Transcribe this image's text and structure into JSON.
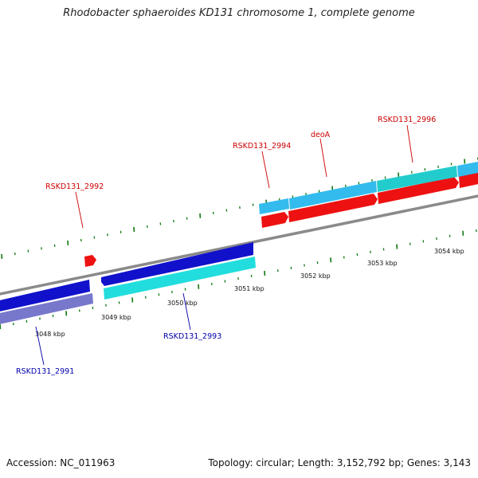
{
  "title": "Rhodobacter sphaeroides KD131 chromosome 1, complete genome",
  "footer": {
    "accession": "Accession: NC_011963",
    "stats": "Topology: circular; Length: 3,152,792 bp; Genes: 3,143"
  },
  "ticks": [
    {
      "label": "3048 kbp"
    },
    {
      "label": "3049 kbp"
    },
    {
      "label": "3050 kbp"
    },
    {
      "label": "3051 kbp"
    },
    {
      "label": "3052 kbp"
    },
    {
      "label": "3053 kbp"
    },
    {
      "label": "3054 kbp"
    }
  ],
  "gene_labels": [
    {
      "text": "RSKD131_2992",
      "color": "#cc0000"
    },
    {
      "text": "RSKD131_2994",
      "color": "#cc0000"
    },
    {
      "text": "deoA",
      "color": "#cc0000"
    },
    {
      "text": "RSKD131_2996",
      "color": "#cc0000"
    },
    {
      "text": "RSKD131_2993",
      "color": "#0000aa"
    },
    {
      "text": "RSKD131_2991",
      "color": "#0000aa"
    }
  ],
  "colors": {
    "backbone": "#8a8a8a",
    "red_feature": "#ee1111",
    "blue_feature": "#1111cc",
    "cyan_feature": "#22dddd",
    "lightblue_feature": "#33bbee",
    "teal_feature": "#22cccc",
    "lavender_feature": "#7777cc",
    "tick_green": "#117711"
  }
}
